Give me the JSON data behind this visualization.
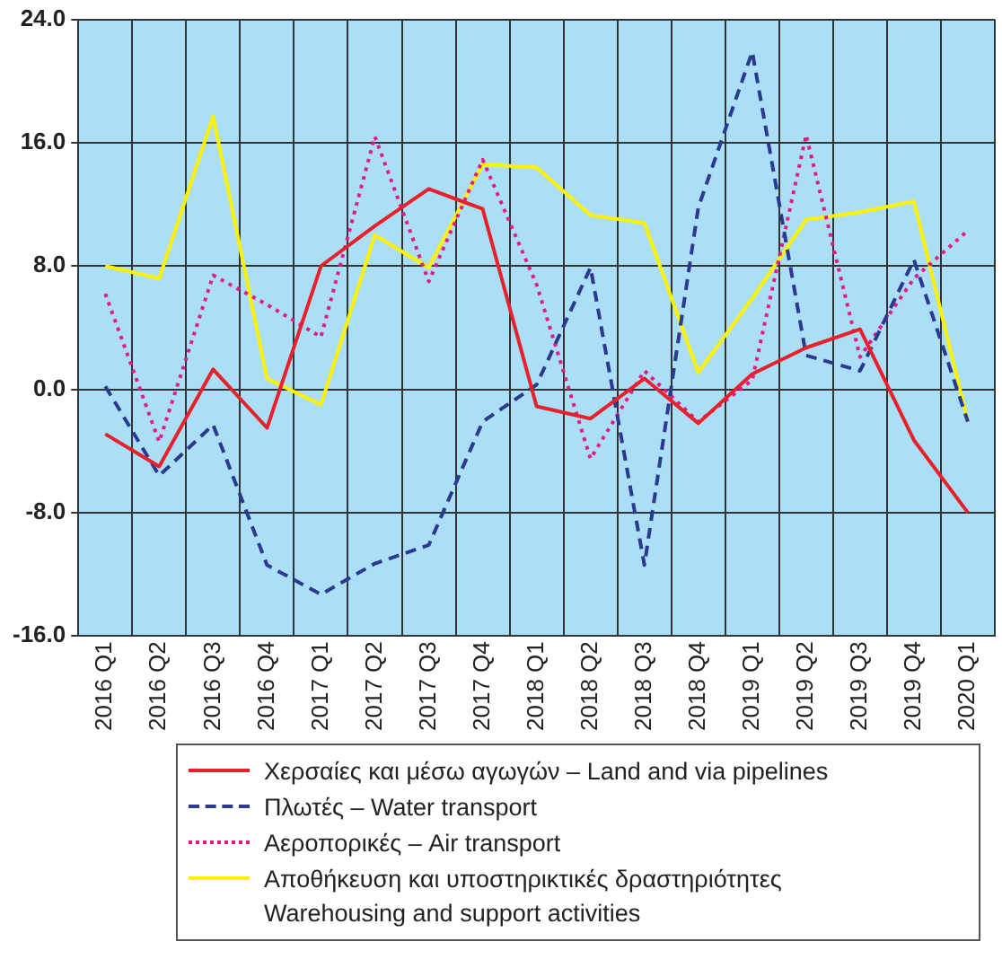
{
  "chart_data": {
    "type": "line",
    "categories": [
      "2016 Q1",
      "2016 Q2",
      "2016 Q3",
      "2016 Q4",
      "2017 Q1",
      "2017 Q2",
      "2017 Q3",
      "2017 Q4",
      "2018 Q1",
      "2018 Q2",
      "2018 Q3",
      "2018 Q4",
      "2019 Q1",
      "2019 Q2",
      "2019 Q3",
      "2019 Q4",
      "2020 Q1"
    ],
    "series": [
      {
        "name": "Χερσαίες και μέσω αγωγών – Land and via pipelines",
        "color": "#e8202a",
        "line_style": "solid",
        "values": [
          -2.9,
          -5.0,
          1.3,
          -2.5,
          8.0,
          10.6,
          13.0,
          11.7,
          -1.1,
          -1.9,
          0.7,
          -2.2,
          1.0,
          2.7,
          3.9,
          -3.3,
          -8.0
        ]
      },
      {
        "name": "Πλωτές – Water transport",
        "color": "#2b3990",
        "line_style": "dashed",
        "values": [
          0.2,
          -5.6,
          -2.3,
          -11.4,
          -13.3,
          -11.3,
          -10.1,
          -2.1,
          0.3,
          7.9,
          -11.4,
          11.8,
          21.9,
          2.2,
          1.2,
          8.4,
          -2.1
        ]
      },
      {
        "name": "Αεροπορικές – Air transport",
        "color": "#e5198a",
        "line_style": "dotted",
        "values": [
          6.2,
          -3.4,
          7.4,
          5.5,
          3.4,
          16.4,
          7.0,
          14.9,
          6.8,
          -4.5,
          1.2,
          -2.1,
          0.6,
          16.5,
          2.1,
          7.2,
          10.3
        ]
      },
      {
        "name": "Αποθήκευση και υποστηρικτικές δραστηριότητες\nWarehousing and support activities",
        "color": "#fff200",
        "line_style": "solid",
        "values": [
          8.0,
          7.2,
          17.7,
          0.7,
          -1.0,
          10.0,
          7.9,
          14.6,
          14.4,
          11.3,
          10.8,
          1.1,
          5.9,
          11.0,
          11.5,
          12.2,
          -2.1
        ]
      }
    ],
    "ylim": [
      -16,
      24
    ],
    "yticks": [
      {
        "value": -16,
        "label": "-16.0"
      },
      {
        "value": -8,
        "label": "-8.0"
      },
      {
        "value": 0,
        "label": "0.0"
      },
      {
        "value": 8,
        "label": "8.0"
      },
      {
        "value": 16,
        "label": "16.0"
      },
      {
        "value": 24,
        "label": "24.0"
      }
    ],
    "grid": true,
    "legend": "bottom",
    "marker": "none"
  }
}
